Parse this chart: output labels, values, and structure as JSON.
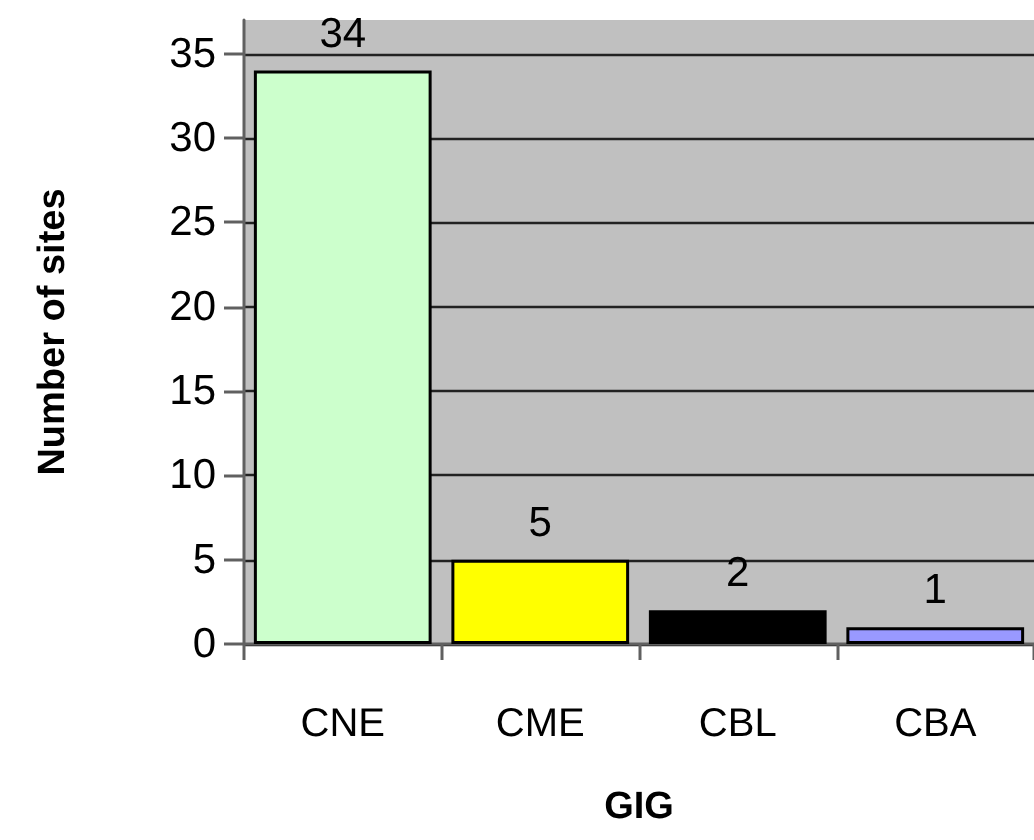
{
  "chart_data": {
    "type": "bar",
    "xlabel": "GIG",
    "ylabel": "Number of sites",
    "categories": [
      "CNE",
      "CME",
      "CBL",
      "CBA"
    ],
    "values": [
      34,
      5,
      2,
      1
    ],
    "colors": [
      "#ccffcc",
      "#ffff00",
      "#000000",
      "#9999ff"
    ],
    "ylim": [
      0,
      37
    ],
    "yticks": [
      0,
      5,
      10,
      15,
      20,
      25,
      30,
      35
    ],
    "grid": "y",
    "data_labels": true
  }
}
